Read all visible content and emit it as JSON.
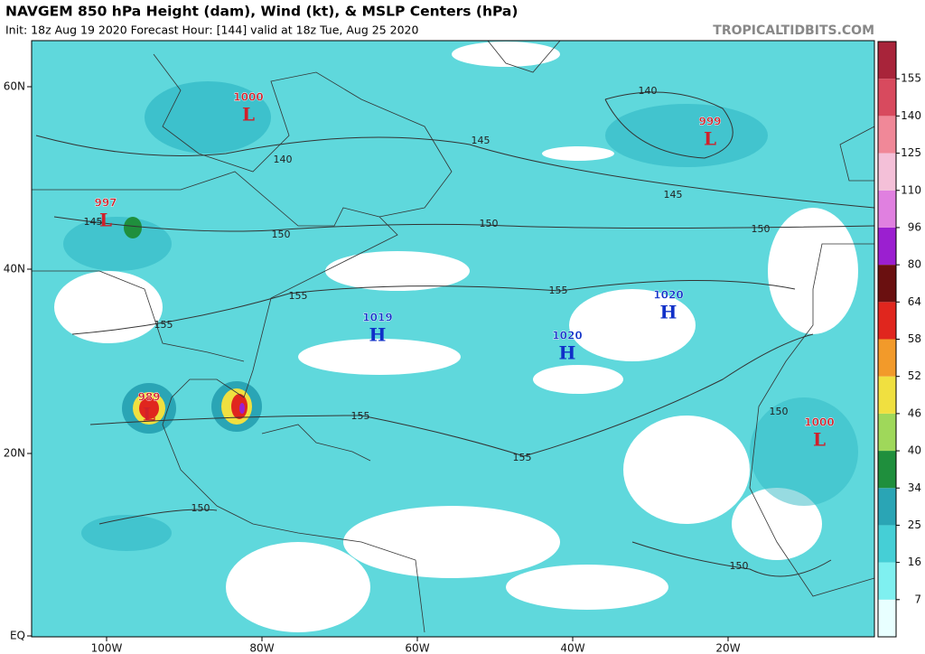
{
  "header": {
    "title": "NAVGEM 850 hPa Height (dam), Wind (kt), & MSLP Centers (hPa)",
    "subtitle": "Init: 18z Aug 19 2020   Forecast Hour: [144]   valid at 18z Tue, Aug 25 2020",
    "credit": "TROPICALTIDBITS.COM"
  },
  "map": {
    "lat_labels": [
      "60N",
      "40N",
      "20N",
      "EQ"
    ],
    "lon_labels": [
      "100W",
      "80W",
      "60W",
      "40W",
      "20W"
    ],
    "pressure_centers": [
      {
        "value": 1000,
        "symbol": "L"
      },
      {
        "value": 999,
        "symbol": "L"
      },
      {
        "value": 997,
        "symbol": "L"
      },
      {
        "value": 989,
        "symbol": "L"
      },
      {
        "value": 1019,
        "symbol": "H"
      },
      {
        "value": 1020,
        "symbol": "H"
      },
      {
        "value": 1020,
        "symbol": "H"
      },
      {
        "value": 1000,
        "symbol": "L"
      }
    ],
    "contour_labels": [
      140,
      145,
      140,
      145,
      145,
      150,
      150,
      150,
      155,
      155,
      155,
      155,
      155,
      150,
      150,
      150
    ]
  },
  "colorbar": {
    "ticks": [
      7,
      16,
      25,
      34,
      40,
      46,
      52,
      58,
      64,
      80,
      96,
      110,
      125,
      140,
      155
    ],
    "colors": [
      "#e8ffff",
      "#7ff0f0",
      "#45cfd6",
      "#2aa5b5",
      "#1f8f3d",
      "#9fd85a",
      "#f0e040",
      "#f29a2a",
      "#e0261e",
      "#6a1010",
      "#9b1fd0",
      "#e080e0",
      "#f4c0d8",
      "#f08898",
      "#d84a5e",
      "#a8243a"
    ]
  }
}
